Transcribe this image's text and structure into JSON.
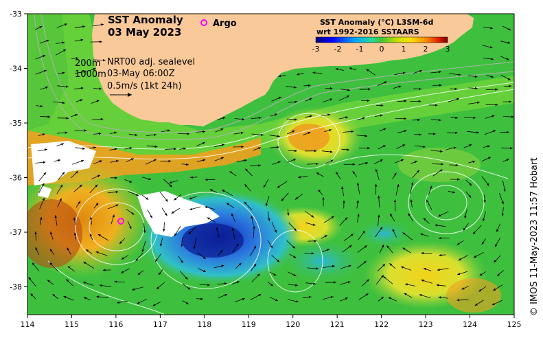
{
  "map": {
    "title_line1": "SST Anomaly",
    "title_line2": "03 May 2023",
    "argo_label": "Argo",
    "info": {
      "depth1": "200m",
      "depth2": "1000m",
      "product": "NRT00 adj. sealevel",
      "datetime": "03-May 06:00Z",
      "scale": "0.5m/s (1kt 24h)"
    },
    "colorbar": {
      "title_line1": "SST Anomaly (°C) L3SM-6d",
      "title_line2": "wrt 1992-2016 SSTAARS",
      "ticks": [
        "-3",
        "-2",
        "-1",
        "0",
        "1",
        "2",
        "3"
      ]
    },
    "credit": "© IMOS 11-May-2023 11:57 Hobart",
    "axes": {
      "lon_ticks": [
        "114",
        "115",
        "116",
        "117",
        "118",
        "119",
        "120",
        "121",
        "122",
        "123",
        "124",
        "125"
      ],
      "lat_ticks": [
        "-33",
        "-34",
        "-35",
        "-36",
        "-37",
        "-38"
      ]
    },
    "colors": {
      "land": "#f9c999",
      "argo_marker": "#ff00ff"
    }
  }
}
